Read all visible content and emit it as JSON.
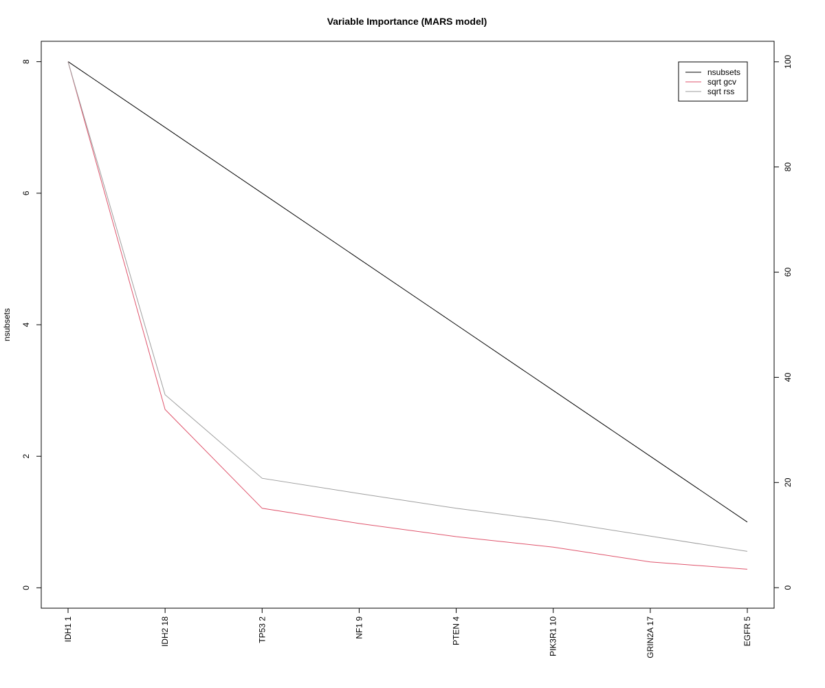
{
  "chart_data": {
    "type": "line",
    "title": "Variable Importance (MARS model)",
    "xlabel": "",
    "ylabel": "nsubsets",
    "categories": [
      "IDH1  1",
      "IDH2  18",
      "TP53  2",
      "NF1  9",
      "PTEN  4",
      "PIK3R1  10",
      "GRIN2A  17",
      "EGFR  5"
    ],
    "left_axis": {
      "ticks": [
        0,
        2,
        4,
        6,
        8
      ],
      "ylim": [
        -0.31,
        8.31
      ]
    },
    "right_axis": {
      "ticks": [
        0,
        20,
        40,
        60,
        80,
        100
      ],
      "ylim": [
        -3.9,
        103.9
      ]
    },
    "series": [
      {
        "name": "nsubsets",
        "axis": "left",
        "color": "#000000",
        "values": [
          8,
          7,
          6,
          5,
          4,
          3,
          2,
          1
        ]
      },
      {
        "name": "sqrt gcv",
        "axis": "right",
        "color": "#DF536B",
        "values": [
          100,
          33.9,
          15.1,
          12.2,
          9.7,
          7.7,
          4.9,
          3.5
        ]
      },
      {
        "name": "sqrt rss",
        "axis": "right",
        "color": "#9E9E9E",
        "values": [
          100,
          36.7,
          20.8,
          17.9,
          15.1,
          12.7,
          9.8,
          6.9
        ]
      }
    ],
    "legend": {
      "position": "top-right",
      "entries": [
        "nsubsets",
        "sqrt gcv",
        "sqrt rss"
      ]
    },
    "grid": false
  }
}
